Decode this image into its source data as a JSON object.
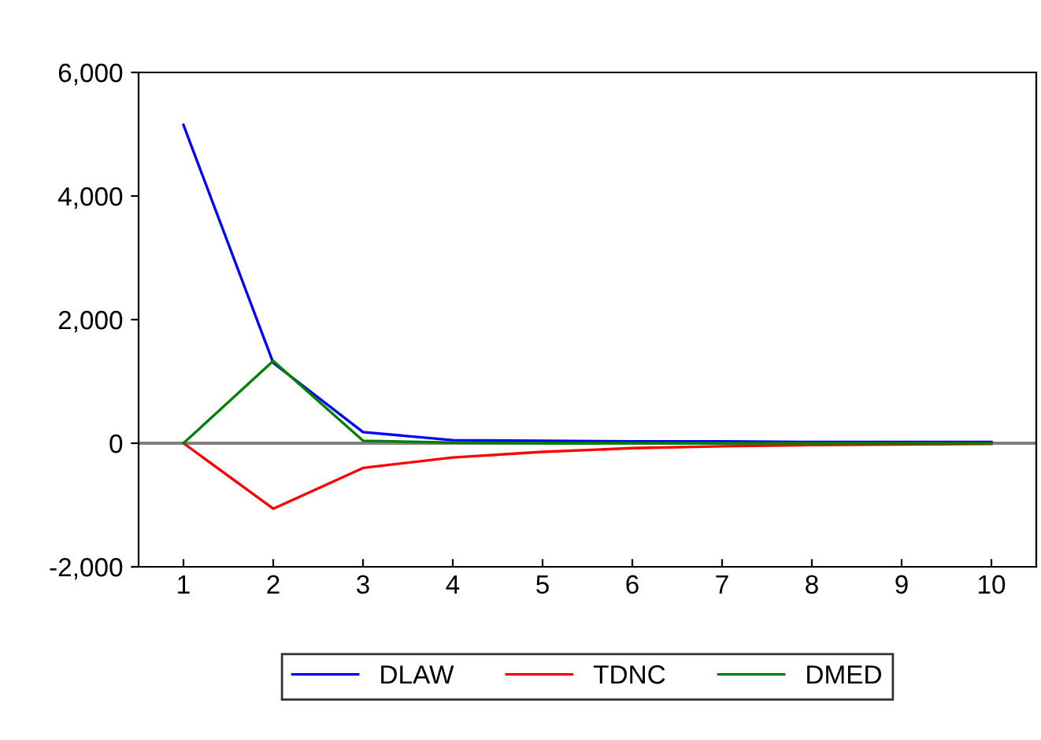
{
  "chart_data": {
    "type": "line",
    "x": [
      1,
      2,
      3,
      4,
      5,
      6,
      7,
      8,
      9,
      10
    ],
    "xlim": [
      0.5,
      10.5
    ],
    "xticks": [
      1,
      2,
      3,
      4,
      5,
      6,
      7,
      8,
      9,
      10
    ],
    "ylim": [
      -2000,
      6000
    ],
    "yticks": [
      {
        "value": -2000,
        "label": "-2,000"
      },
      {
        "value": 0,
        "label": "0"
      },
      {
        "value": 2000,
        "label": "2,000"
      },
      {
        "value": 4000,
        "label": "4,000"
      },
      {
        "value": 6000,
        "label": "6,000"
      }
    ],
    "series": [
      {
        "name": "DLAW",
        "color": "#0000ff",
        "values": [
          5150,
          1300,
          180,
          50,
          40,
          30,
          30,
          20,
          20,
          20
        ]
      },
      {
        "name": "TDNC",
        "color": "#ff0000",
        "values": [
          0,
          -1060,
          -400,
          -230,
          -140,
          -80,
          -50,
          -30,
          -20,
          -10
        ]
      },
      {
        "name": "DMED",
        "color": "#008000",
        "values": [
          0,
          1330,
          40,
          10,
          0,
          0,
          0,
          0,
          0,
          0
        ]
      }
    ],
    "ref_lines": [
      {
        "axis": "y",
        "value": 0,
        "color": "#808080"
      }
    ],
    "legend": "bottom",
    "grid": false,
    "marker": "none",
    "line_style": "solid"
  }
}
